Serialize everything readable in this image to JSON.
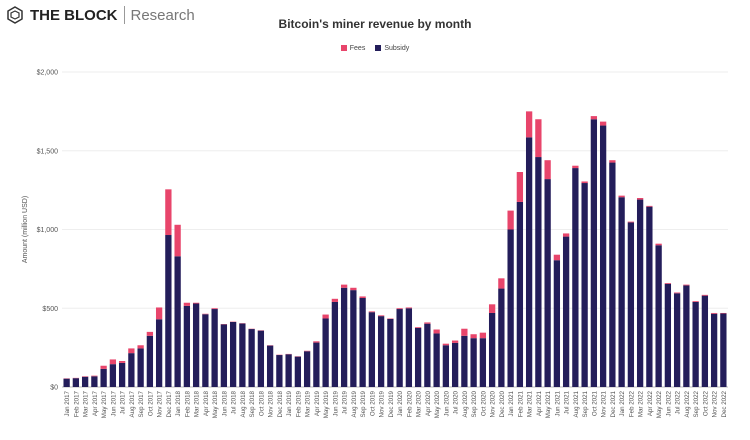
{
  "header": {
    "brand": "THE BLOCK",
    "sub_brand": "Research"
  },
  "chart_data": {
    "type": "bar",
    "stacked": true,
    "title": "Bitcoin's miner revenue by month",
    "xlabel": "",
    "ylabel": "Amount (million USD)",
    "ylim": [
      0,
      2000
    ],
    "yticks": [
      0,
      500,
      1000,
      1500,
      2000
    ],
    "ytick_labels": [
      "$0",
      "$500",
      "$1,000",
      "$1,500",
      "$2,000"
    ],
    "grid": true,
    "legend_position": "top",
    "start_month": "Jan 2017",
    "end_month": "Dec 2022",
    "series": [
      {
        "name": "Fees",
        "color": "#e8456b",
        "values": [
          2,
          2,
          3,
          4,
          20,
          30,
          12,
          30,
          20,
          25,
          75,
          290,
          200,
          20,
          5,
          3,
          5,
          2,
          2,
          2,
          2,
          2,
          2,
          2,
          2,
          2,
          3,
          8,
          25,
          20,
          20,
          15,
          10,
          5,
          5,
          3,
          5,
          5,
          5,
          8,
          25,
          10,
          15,
          45,
          25,
          35,
          55,
          65,
          120,
          190,
          165,
          240,
          120,
          35,
          20,
          15,
          10,
          20,
          25,
          15,
          10,
          5,
          10,
          5,
          10,
          5,
          5,
          5,
          5,
          5,
          5,
          3
        ]
      },
      {
        "name": "Subsidy",
        "color": "#231d5a",
        "values": [
          53,
          56,
          65,
          68,
          115,
          145,
          153,
          215,
          245,
          325,
          430,
          965,
          830,
          515,
          530,
          462,
          495,
          398,
          413,
          403,
          368,
          358,
          263,
          203,
          208,
          193,
          227,
          282,
          435,
          540,
          630,
          615,
          565,
          475,
          450,
          432,
          495,
          500,
          375,
          402,
          340,
          265,
          280,
          325,
          310,
          310,
          470,
          625,
          1000,
          1175,
          1585,
          1460,
          1320,
          805,
          955,
          1390,
          1295,
          1700,
          1660,
          1425,
          1205,
          1045,
          1190,
          1145,
          900,
          655,
          595,
          645,
          540,
          580,
          465,
          467
        ]
      }
    ]
  }
}
